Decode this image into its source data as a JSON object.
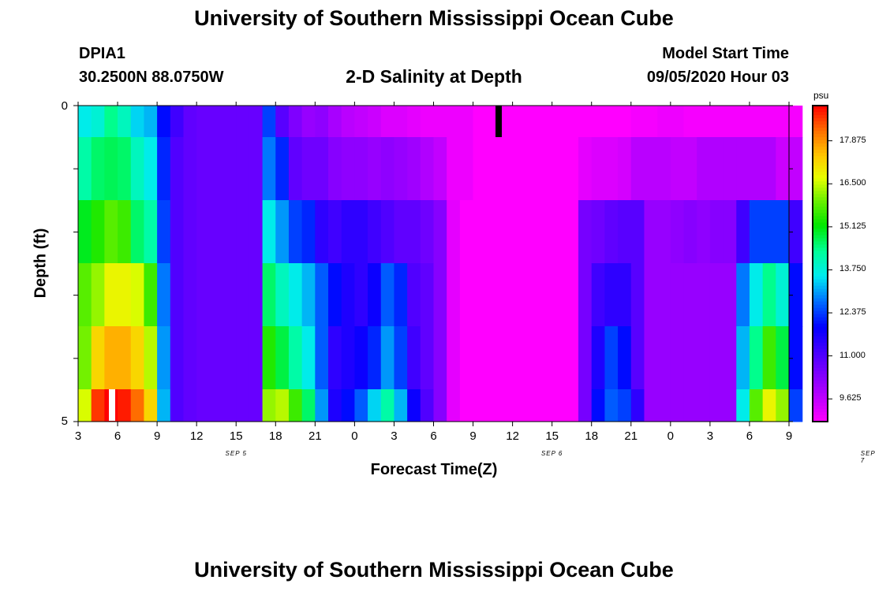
{
  "header": {
    "title_top": "University of Southern Mississippi Ocean Cube",
    "title_bottom": "University of Southern Mississippi Ocean Cube",
    "station_id": "DPIA1",
    "station_coords": "30.2500N 88.0750W",
    "plot_title": "2-D Salinity at Depth",
    "model_label": "Model Start Time",
    "model_time": "09/05/2020 Hour 03"
  },
  "colors": {
    "background": "#ffffff",
    "marker_black": "#000000",
    "marker_white": "#ffffff"
  },
  "chart_data": {
    "type": "heatmap",
    "title": "2-D Salinity at Depth",
    "xlabel": "Forecast Time(Z)",
    "ylabel": "Depth (ft)",
    "x_tick_labels": [
      "3",
      "6",
      "9",
      "12",
      "15",
      "18",
      "21",
      "0",
      "3",
      "6",
      "9",
      "12",
      "15",
      "18",
      "21",
      "0",
      "3",
      "6",
      "9"
    ],
    "day_labels": [
      {
        "label": "SEP 5",
        "hour_index": 12
      },
      {
        "label": "SEP 6",
        "hour_index": 36
      },
      {
        "label": "SEP 7",
        "hour_index": 60
      }
    ],
    "x_range_hours": [
      0,
      54
    ],
    "y_tick_labels": [
      "0",
      "5"
    ],
    "ylim": [
      0,
      5
    ],
    "depth_levels": 5,
    "colorbar": {
      "unit": "psu",
      "labels": [
        "17.875",
        "16.500",
        "15.125",
        "13.750",
        "12.375",
        "11.000",
        "9.625"
      ],
      "range": [
        8.9,
        19.0
      ]
    },
    "salinity_grid": [
      [
        13.6,
        13.8,
        14.4,
        14.0,
        13.4,
        13.2,
        12.0,
        11.2,
        10.8,
        10.7,
        10.7,
        10.7,
        10.7,
        10.7,
        12.4,
        10.9,
        10.4,
        10.1,
        10.2,
        9.9,
        9.7,
        9.6,
        9.5,
        9.3,
        9.3,
        9.2,
        9.1,
        9.1,
        9.1,
        9.1,
        8.9,
        8.9,
        8.9,
        8.9,
        8.9,
        8.9,
        8.9,
        8.9,
        8.9,
        8.9,
        8.9,
        8.9,
        9.0,
        9.0,
        9.1,
        9.1,
        9.0,
        9.0,
        9.0,
        9.0,
        9.0,
        9.0,
        9.0,
        9.0,
        9.0
      ],
      [
        14.2,
        14.6,
        14.7,
        14.6,
        14.0,
        13.6,
        12.2,
        11.0,
        10.8,
        10.7,
        10.7,
        10.7,
        10.7,
        10.7,
        12.8,
        12.2,
        10.8,
        10.6,
        10.6,
        10.3,
        10.2,
        10.2,
        10.1,
        10.2,
        10.1,
        10.0,
        9.8,
        9.6,
        9.1,
        9.1,
        8.9,
        8.9,
        8.9,
        8.9,
        8.9,
        8.9,
        8.9,
        8.9,
        9.2,
        9.3,
        9.3,
        9.4,
        9.7,
        9.7,
        9.7,
        9.6,
        9.6,
        9.8,
        9.8,
        9.8,
        9.8,
        9.8,
        9.8,
        9.5,
        9.6
      ],
      [
        15.0,
        15.4,
        15.8,
        15.6,
        14.6,
        14.2,
        12.4,
        11.0,
        10.8,
        10.7,
        10.7,
        10.7,
        10.7,
        10.7,
        13.6,
        13.0,
        12.4,
        12.2,
        11.4,
        11.2,
        11.4,
        11.4,
        11.2,
        11.0,
        10.8,
        10.8,
        10.6,
        10.3,
        9.2,
        8.9,
        8.9,
        8.9,
        8.9,
        8.9,
        8.9,
        8.9,
        8.9,
        8.9,
        10.5,
        10.6,
        10.8,
        10.9,
        10.9,
        10.1,
        10.1,
        10.2,
        10.3,
        10.2,
        10.3,
        10.3,
        11.2,
        12.4,
        12.4,
        12.4,
        11.2
      ],
      [
        15.8,
        16.2,
        16.8,
        16.8,
        16.6,
        15.6,
        12.8,
        11.0,
        10.8,
        10.7,
        10.7,
        10.7,
        10.7,
        10.7,
        14.6,
        14.0,
        13.6,
        13.2,
        12.6,
        12.0,
        11.6,
        11.4,
        11.8,
        12.6,
        12.2,
        11.0,
        10.8,
        10.3,
        9.2,
        8.9,
        8.9,
        8.9,
        8.9,
        8.9,
        8.9,
        8.9,
        8.9,
        8.9,
        10.5,
        11.2,
        11.4,
        11.4,
        10.9,
        10.1,
        10.1,
        10.1,
        10.1,
        10.1,
        10.1,
        10.1,
        12.8,
        13.6,
        14.4,
        13.8,
        12.0
      ],
      [
        16.0,
        17.2,
        17.6,
        17.6,
        17.2,
        16.4,
        13.0,
        11.0,
        10.8,
        10.7,
        10.7,
        10.7,
        10.7,
        10.7,
        15.4,
        14.8,
        14.2,
        13.6,
        12.6,
        11.4,
        11.6,
        11.8,
        12.2,
        13.0,
        12.4,
        11.2,
        10.8,
        10.3,
        9.2,
        8.9,
        8.9,
        8.9,
        8.9,
        8.9,
        8.9,
        8.9,
        8.9,
        8.9,
        10.5,
        11.6,
        12.4,
        12.0,
        10.9,
        10.1,
        10.1,
        10.1,
        10.1,
        10.1,
        10.1,
        10.1,
        13.2,
        14.4,
        15.6,
        14.8,
        12.0
      ],
      [
        16.6,
        18.6,
        19.0,
        18.8,
        18.2,
        17.2,
        13.2,
        11.0,
        10.8,
        10.7,
        10.7,
        10.7,
        10.7,
        10.7,
        16.2,
        16.4,
        15.6,
        14.6,
        13.0,
        11.6,
        12.0,
        12.6,
        13.4,
        14.2,
        13.2,
        11.8,
        11.0,
        10.3,
        9.2,
        8.9,
        8.9,
        8.9,
        8.9,
        8.9,
        8.9,
        8.9,
        8.9,
        8.9,
        10.5,
        12.0,
        12.6,
        12.4,
        11.4,
        10.1,
        10.1,
        10.1,
        10.1,
        10.1,
        10.1,
        10.1,
        13.6,
        15.8,
        16.8,
        16.2,
        12.4
      ]
    ]
  }
}
